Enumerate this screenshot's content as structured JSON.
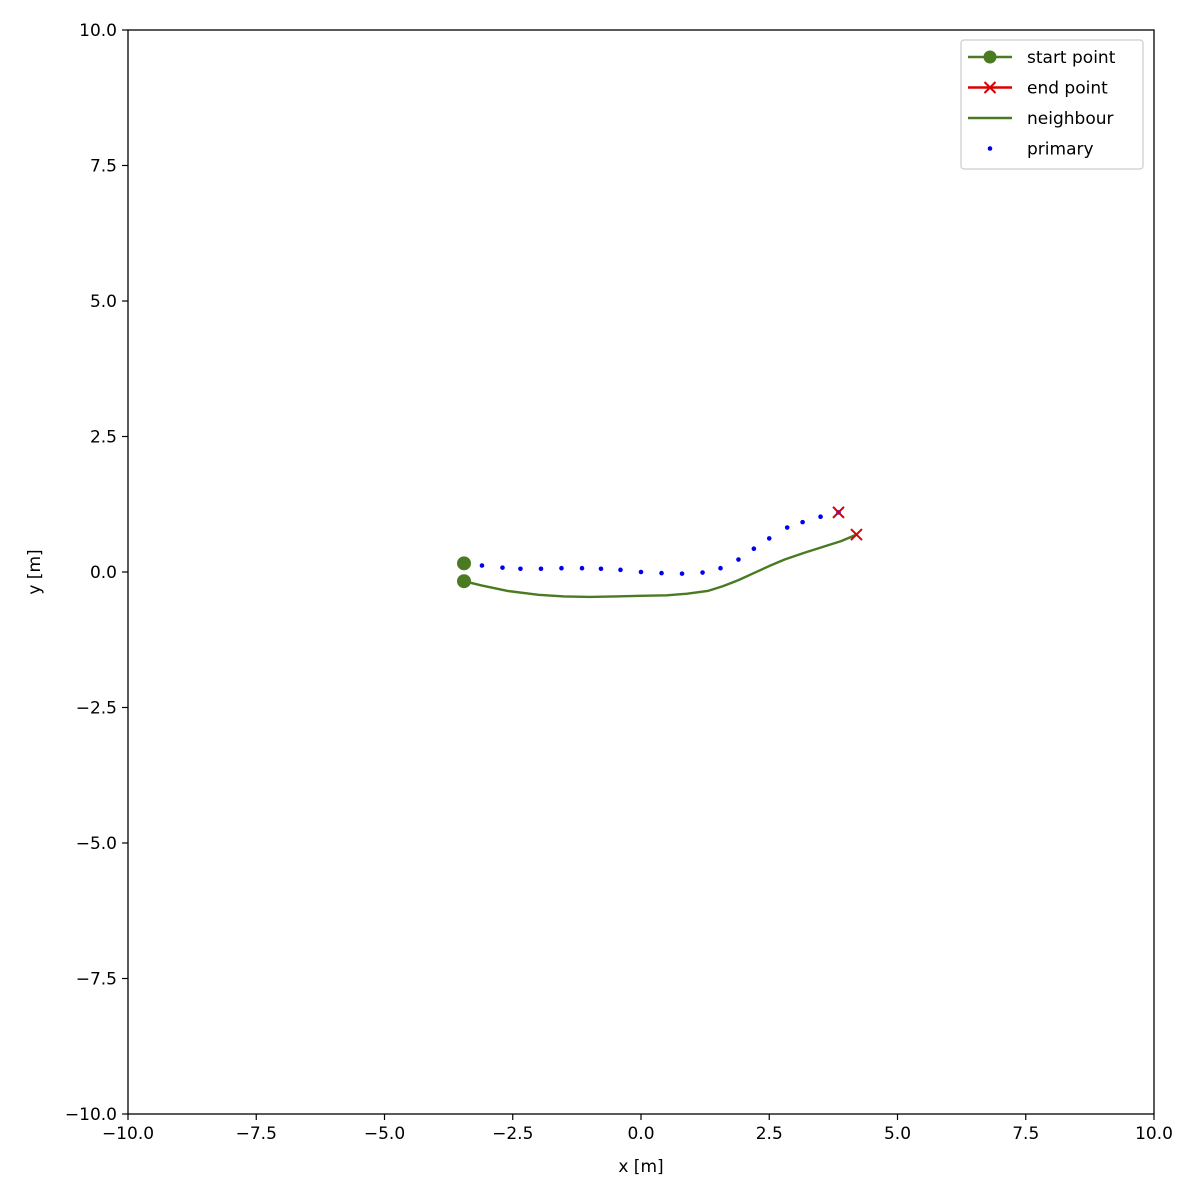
{
  "chart_data": {
    "type": "line",
    "title": "",
    "xlabel": "x [m]",
    "ylabel": "y [m]",
    "xlim": [
      -10,
      10
    ],
    "ylim": [
      -10,
      10
    ],
    "xticks": [
      -10,
      -7.5,
      -5,
      -2.5,
      0,
      2.5,
      5,
      7.5,
      10
    ],
    "yticks": [
      -10,
      -7.5,
      -5,
      -2.5,
      0,
      2.5,
      5,
      7.5,
      10
    ],
    "xtick_labels": [
      "−10.0",
      "−7.5",
      "−5.0",
      "−2.5",
      "0.0",
      "2.5",
      "5.0",
      "7.5",
      "10.0"
    ],
    "ytick_labels": [
      "−10.0",
      "−7.5",
      "−5.0",
      "−2.5",
      "0.0",
      "2.5",
      "5.0",
      "7.5",
      "10.0"
    ],
    "grid": false,
    "legend_position": "top-right",
    "legend": [
      {
        "label": "start point",
        "marker": "circle",
        "line": true,
        "color": "#4a7a22"
      },
      {
        "label": "end point",
        "marker": "x",
        "line": true,
        "color": "#dd0000"
      },
      {
        "label": "neighbour",
        "marker": "none",
        "line": true,
        "color": "#4a7a22"
      },
      {
        "label": "primary",
        "marker": "dot",
        "line": false,
        "color": "#0000ee"
      }
    ],
    "series": [
      {
        "name": "primary",
        "style": "dotted",
        "color": "#0000ee",
        "x": [
          -3.45,
          -3.1,
          -2.7,
          -2.35,
          -1.95,
          -1.55,
          -1.15,
          -0.78,
          -0.4,
          0.0,
          0.4,
          0.8,
          1.2,
          1.55,
          1.9,
          2.2,
          2.5,
          2.85,
          3.15,
          3.5,
          3.85
        ],
        "y": [
          0.16,
          0.12,
          0.08,
          0.06,
          0.06,
          0.07,
          0.07,
          0.06,
          0.04,
          0.0,
          -0.02,
          -0.03,
          -0.01,
          0.07,
          0.23,
          0.43,
          0.62,
          0.82,
          0.92,
          1.02,
          1.1
        ]
      },
      {
        "name": "neighbour",
        "style": "solid",
        "color": "#4a7a22",
        "x": [
          -3.45,
          -3.1,
          -2.6,
          -2.0,
          -1.5,
          -1.0,
          -0.5,
          0.0,
          0.5,
          0.9,
          1.3,
          1.6,
          1.9,
          2.2,
          2.5,
          2.8,
          3.2,
          3.6,
          3.9,
          4.2
        ],
        "y": [
          -0.17,
          -0.25,
          -0.35,
          -0.42,
          -0.45,
          -0.46,
          -0.45,
          -0.44,
          -0.43,
          -0.4,
          -0.35,
          -0.26,
          -0.15,
          -0.02,
          0.11,
          0.23,
          0.36,
          0.48,
          0.57,
          0.69
        ]
      }
    ],
    "start_points": [
      {
        "x": -3.45,
        "y": 0.16
      },
      {
        "x": -3.45,
        "y": -0.17
      }
    ],
    "end_points": [
      {
        "x": 3.85,
        "y": 1.1
      },
      {
        "x": 4.2,
        "y": 0.69
      }
    ]
  }
}
